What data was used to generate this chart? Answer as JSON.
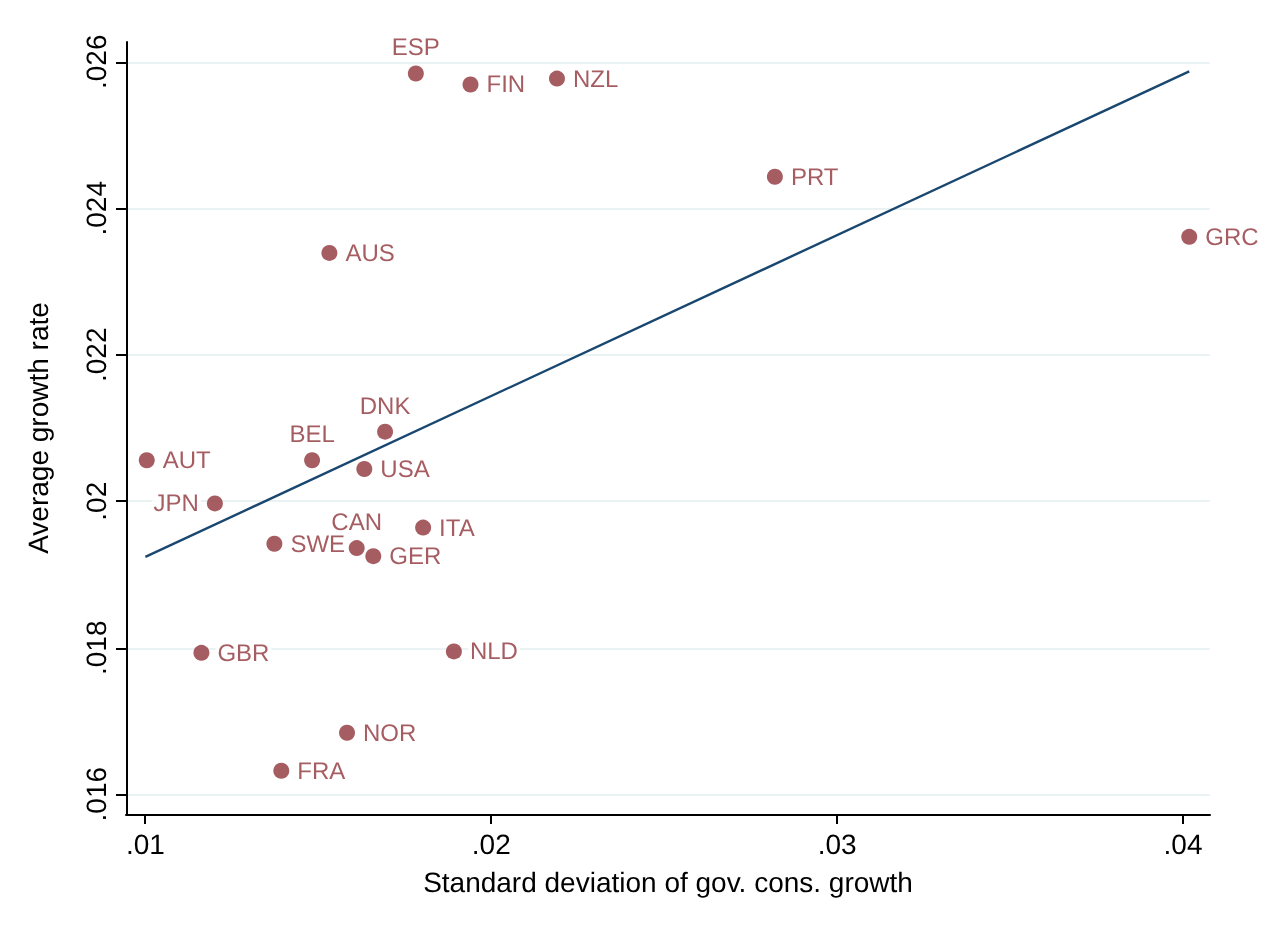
{
  "chart_data": {
    "type": "scatter",
    "xlabel": "Standard deviation of gov. cons. growth",
    "ylabel": "Average growth rate",
    "xlim": [
      0.00944,
      0.04078
    ],
    "ylim": [
      0.01573,
      0.02627
    ],
    "xticks": [
      {
        "value": 0.01,
        "label": ".01"
      },
      {
        "value": 0.02,
        "label": ".02"
      },
      {
        "value": 0.03,
        "label": ".03"
      },
      {
        "value": 0.04,
        "label": ".04"
      }
    ],
    "yticks": [
      {
        "value": 0.016,
        "label": ".016"
      },
      {
        "value": 0.018,
        "label": ".018"
      },
      {
        "value": 0.02,
        "label": ".02"
      },
      {
        "value": 0.022,
        "label": ".022"
      },
      {
        "value": 0.024,
        "label": ".024"
      },
      {
        "value": 0.026,
        "label": ".026"
      }
    ],
    "grid": "y",
    "legend": false,
    "marker": "circle",
    "series": [
      {
        "name": "ESP",
        "color": "#90353b",
        "x": [
          0.01782
        ],
        "values": [
          0.02584
        ]
      },
      {
        "name": "FIN",
        "color": "#90353b",
        "x": [
          0.0194
        ],
        "values": [
          0.02569
        ]
      },
      {
        "name": "NZL",
        "color": "#90353b",
        "x": [
          0.0219
        ],
        "values": [
          0.02577
        ]
      },
      {
        "name": "AUS",
        "color": "#90353b",
        "x": [
          0.01532
        ],
        "values": [
          0.02339
        ]
      },
      {
        "name": "PRT",
        "color": "#90353b",
        "x": [
          0.0282
        ],
        "values": [
          0.02443
        ]
      },
      {
        "name": "GRC",
        "color": "#90353b",
        "x": [
          0.04018
        ],
        "values": [
          0.02361
        ]
      },
      {
        "name": "DNK",
        "color": "#90353b",
        "x": [
          0.01693
        ],
        "values": [
          0.02095
        ]
      },
      {
        "name": "AUT",
        "color": "#90353b",
        "x": [
          0.01004
        ],
        "values": [
          0.02056
        ]
      },
      {
        "name": "BEL",
        "color": "#90353b",
        "x": [
          0.01482
        ],
        "values": [
          0.02056
        ]
      },
      {
        "name": "USA",
        "color": "#90353b",
        "x": [
          0.01633
        ],
        "values": [
          0.02044
        ]
      },
      {
        "name": "JPN",
        "color": "#90353b",
        "x": [
          0.01201
        ],
        "values": [
          0.01997
        ]
      },
      {
        "name": "SWE",
        "color": "#90353b",
        "x": [
          0.01373
        ],
        "values": [
          0.01942
        ]
      },
      {
        "name": "CAN",
        "color": "#90353b",
        "x": [
          0.01611
        ],
        "values": [
          0.01936
        ]
      },
      {
        "name": "GER",
        "color": "#90353b",
        "x": [
          0.01659
        ],
        "values": [
          0.01925
        ]
      },
      {
        "name": "ITA",
        "color": "#90353b",
        "x": [
          0.01803
        ],
        "values": [
          0.01964
        ]
      },
      {
        "name": "GBR",
        "color": "#90353b",
        "x": [
          0.01162
        ],
        "values": [
          0.01793
        ]
      },
      {
        "name": "NLD",
        "color": "#90353b",
        "x": [
          0.01892
        ],
        "values": [
          0.01795
        ]
      },
      {
        "name": "NOR",
        "color": "#90353b",
        "x": [
          0.01583
        ],
        "values": [
          0.01684
        ]
      },
      {
        "name": "FRA",
        "color": "#90353b",
        "x": [
          0.01393
        ],
        "values": [
          0.01632
        ]
      },
      {
        "type": "line",
        "color": "#1a476f",
        "marker": "none",
        "x": [
          0.01,
          0.04018
        ],
        "values": [
          0.01924,
          0.02587
        ]
      }
    ]
  }
}
